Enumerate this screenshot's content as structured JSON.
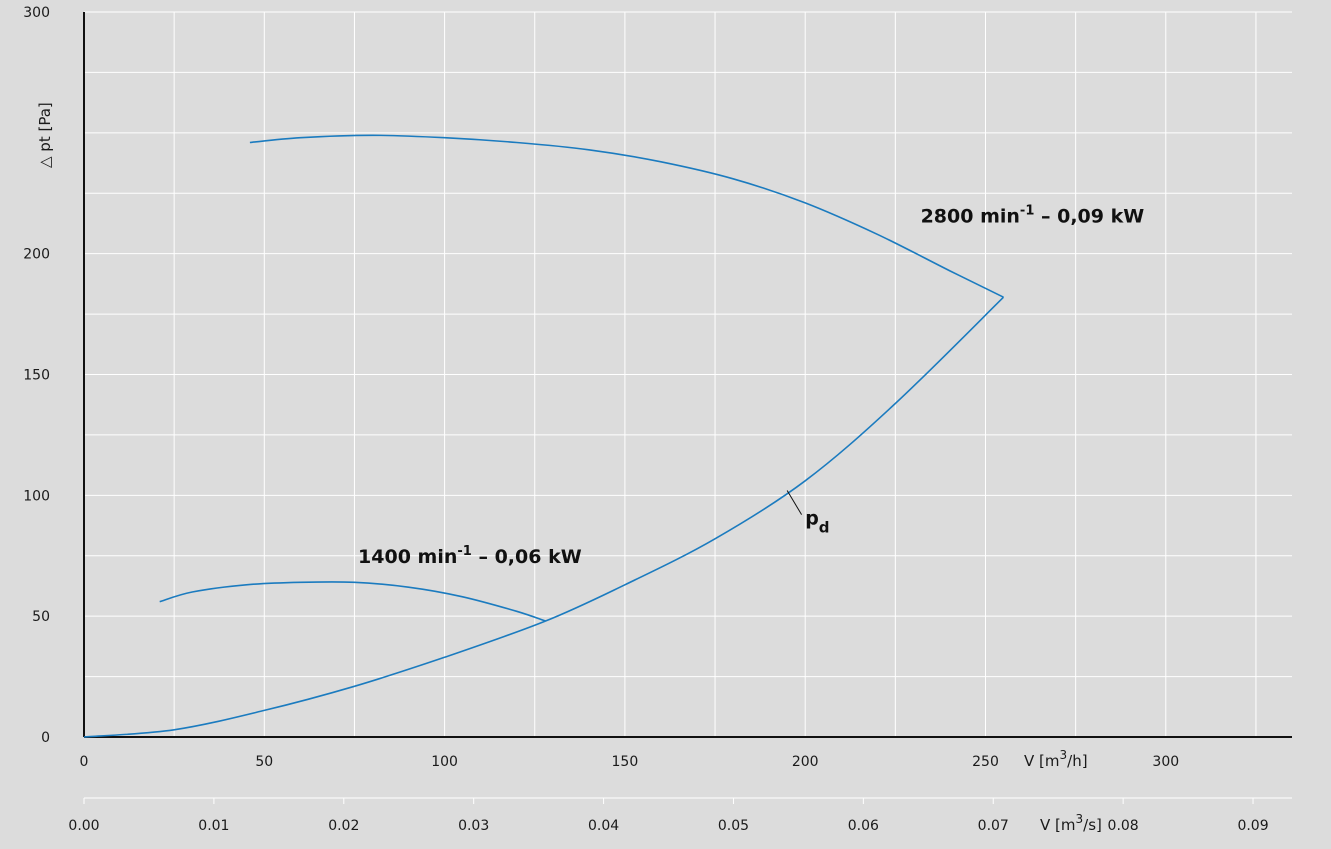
{
  "chart_data": {
    "type": "line",
    "ylabel": "△ pt [Pa]",
    "xlabel_top": "V [m3/h]",
    "xlabel_bottom": "V [m3/s]",
    "ylim": [
      0,
      300
    ],
    "xlim": [
      0,
      335
    ],
    "xlim_m3s": [
      0,
      0.093
    ],
    "yticks": [
      0,
      50,
      100,
      150,
      200,
      300
    ],
    "xticks": [
      0,
      50,
      100,
      150,
      200,
      250,
      300
    ],
    "xticks_m3s": [
      0.0,
      0.01,
      0.02,
      0.03,
      0.04,
      0.05,
      0.06,
      0.07,
      0.08,
      0.09
    ],
    "grid": true,
    "series": [
      {
        "name": "2800 min-1 – 0,09 kW",
        "color": "#1b7bbf",
        "x": [
          46,
          60,
          80,
          100,
          120,
          140,
          160,
          180,
          200,
          220,
          240,
          255
        ],
        "y": [
          246,
          248,
          249,
          248,
          246,
          243,
          238,
          231,
          221,
          208,
          193,
          182
        ]
      },
      {
        "name": "1400 min-1 – 0,06 kW",
        "color": "#1b7bbf",
        "x": [
          21,
          30,
          45,
          60,
          75,
          90,
          105,
          120,
          128
        ],
        "y": [
          56,
          60,
          63,
          64,
          64,
          62,
          58,
          52,
          48
        ]
      },
      {
        "name": "pd",
        "color": "#1b7bbf",
        "x": [
          0,
          25,
          50,
          75,
          100,
          128,
          150,
          175,
          200,
          225,
          255
        ],
        "y": [
          0,
          3,
          11,
          21,
          33,
          48,
          63,
          82,
          106,
          138,
          182
        ]
      }
    ],
    "annotations": [
      {
        "text": "2800 min",
        "sup": "-1",
        "rest": " – 0,09 kW",
        "x": 232,
        "y": 213
      },
      {
        "text": "1400 min",
        "sup": "-1",
        "rest": " – 0,06 kW",
        "x": 76,
        "y": 72
      },
      {
        "text": "p",
        "sub": "d",
        "x": 200,
        "y": 88
      }
    ]
  }
}
